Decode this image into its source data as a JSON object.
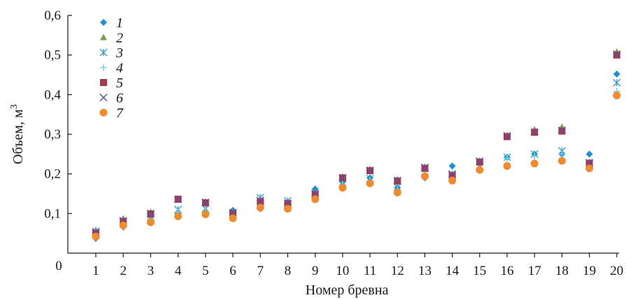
{
  "chart_data": {
    "type": "scatter",
    "xlabel": "Номер бревна",
    "ylabel": "Объем, м",
    "ylabel_sup": "3",
    "y_origin_label": "0",
    "xlim": [
      0.5,
      20
    ],
    "ylim": [
      0,
      0.6
    ],
    "x": [
      1,
      2,
      3,
      4,
      5,
      6,
      7,
      8,
      9,
      10,
      11,
      12,
      13,
      14,
      15,
      16,
      17,
      18,
      19,
      20
    ],
    "x_tick_labels": [
      "1",
      "2",
      "3",
      "4",
      "5",
      "6",
      "7",
      "8",
      "9",
      "10",
      "11",
      "12",
      "13",
      "14",
      "15",
      "16",
      "17",
      "18",
      "19",
      "20"
    ],
    "y_ticks": [
      0.1,
      0.2,
      0.3,
      0.4,
      0.5,
      0.6
    ],
    "y_tick_labels": [
      "0,1",
      "0,2",
      "0,3",
      "0,4",
      "0,5",
      "0,6"
    ],
    "grid": false,
    "legend_position": "top-left",
    "series": [
      {
        "name": "1",
        "marker": "diamond",
        "color": "#1f8fd0",
        "values": [
          0.037,
          0.066,
          0.086,
          0.1,
          0.105,
          0.108,
          0.112,
          0.118,
          0.162,
          0.18,
          0.19,
          0.165,
          0.19,
          0.22,
          0.225,
          0.242,
          0.25,
          0.25,
          0.25,
          0.452
        ]
      },
      {
        "name": "2",
        "marker": "triangle",
        "color": "#77a04a",
        "values": [
          0.058,
          0.087,
          0.104,
          0.138,
          0.13,
          0.104,
          0.13,
          0.128,
          0.152,
          0.193,
          0.212,
          0.186,
          0.218,
          0.198,
          0.233,
          0.298,
          0.312,
          0.318,
          0.23,
          0.508
        ]
      },
      {
        "name": "3",
        "marker": "asterisk",
        "color": "#3a9fbf",
        "values": [
          0.055,
          0.082,
          0.088,
          0.11,
          0.112,
          0.102,
          0.14,
          0.132,
          0.15,
          0.178,
          0.188,
          0.166,
          0.216,
          0.2,
          0.232,
          0.242,
          0.25,
          0.258,
          0.228,
          0.43
        ]
      },
      {
        "name": "4",
        "marker": "plus",
        "color": "#7ecbef",
        "values": [
          0.045,
          0.078,
          0.087,
          0.104,
          0.106,
          0.098,
          0.122,
          0.124,
          0.144,
          0.172,
          0.182,
          0.16,
          0.206,
          0.195,
          0.225,
          0.24,
          0.245,
          0.25,
          0.226,
          0.408
        ]
      },
      {
        "name": "5",
        "marker": "square",
        "color": "#a33b48",
        "values": [
          0.05,
          0.08,
          0.099,
          0.136,
          0.127,
          0.1,
          0.13,
          0.125,
          0.148,
          0.19,
          0.208,
          0.182,
          0.214,
          0.196,
          0.23,
          0.294,
          0.305,
          0.308,
          0.227,
          0.5
        ]
      },
      {
        "name": "6",
        "marker": "x",
        "color": "#6b4a9c",
        "values": [
          0.052,
          0.08,
          0.1,
          0.136,
          0.128,
          0.102,
          0.133,
          0.126,
          0.15,
          0.19,
          0.209,
          0.183,
          0.216,
          0.198,
          0.231,
          0.296,
          0.306,
          0.31,
          0.228,
          0.502
        ]
      },
      {
        "name": "7",
        "marker": "circle",
        "color": "#ef8a2d",
        "values": [
          0.042,
          0.07,
          0.078,
          0.093,
          0.098,
          0.088,
          0.115,
          0.112,
          0.136,
          0.165,
          0.176,
          0.153,
          0.194,
          0.183,
          0.21,
          0.22,
          0.226,
          0.233,
          0.214,
          0.398
        ]
      }
    ]
  }
}
